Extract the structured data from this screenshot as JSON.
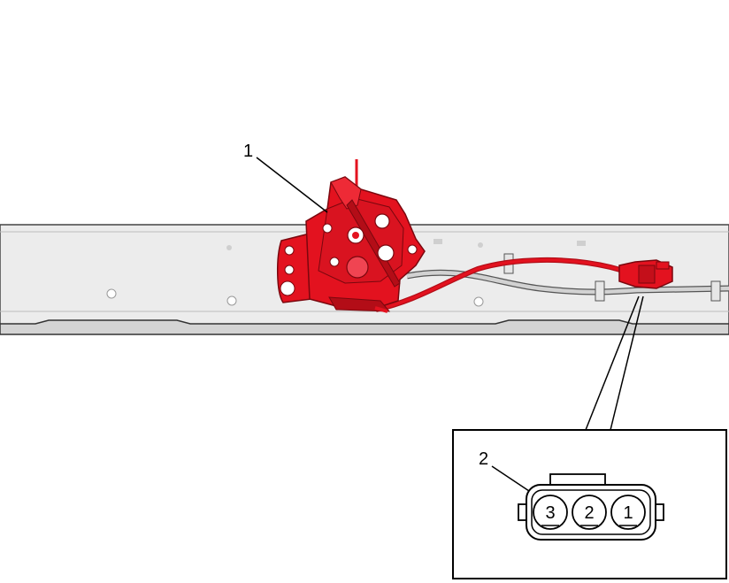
{
  "callouts": {
    "latch": "1",
    "connector": "2"
  },
  "connector_pins": [
    "3",
    "2",
    "1"
  ],
  "colors": {
    "highlight": "#e3121f",
    "highlight_dark": "#b30d17",
    "rail_fill": "#e8e8e8",
    "rail_edge": "#333333",
    "cable": "#c8c8c8",
    "line": "#000000"
  },
  "icons": {
    "latch": "hood-latch-assembly",
    "connector": "three-pin-electrical-connector"
  }
}
